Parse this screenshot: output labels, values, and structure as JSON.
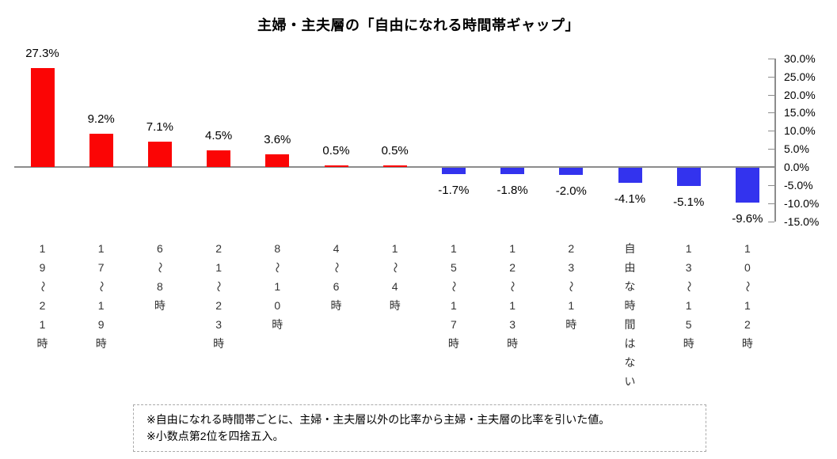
{
  "title": "主婦・主夫層の「自由になれる時間帯ギャップ」",
  "chart_data": {
    "type": "bar",
    "title": "主婦・主夫層の「自由になれる時間帯ギャップ」",
    "categories": [
      "19〜21時",
      "17〜19時",
      "6〜8時",
      "21〜23時",
      "8〜10時",
      "4〜6時",
      "1〜4時",
      "15〜17時",
      "12〜13時",
      "23〜1時",
      "自由な時間はない",
      "13〜15時",
      "10〜12時"
    ],
    "values": [
      27.3,
      9.2,
      7.1,
      4.5,
      3.6,
      0.5,
      0.5,
      -1.7,
      -1.8,
      -2.0,
      -4.1,
      -5.1,
      -9.6
    ],
    "value_labels": [
      "27.3%",
      "9.2%",
      "7.1%",
      "4.5%",
      "3.6%",
      "0.5%",
      "0.5%",
      "-1.7%",
      "-1.8%",
      "-2.0%",
      "-4.1%",
      "-5.1%",
      "-9.6%"
    ],
    "xlabel": "",
    "ylabel": "",
    "ylim": [
      -15,
      30
    ],
    "y_ticks": [
      30,
      25,
      20,
      15,
      10,
      5,
      0,
      -5,
      -10,
      -15
    ],
    "y_tick_labels": [
      "30.0%",
      "25.0%",
      "20.0%",
      "15.0%",
      "10.0%",
      "5.0%",
      "0.0%",
      "-5.0%",
      "-10.0%",
      "-15.0%"
    ],
    "value_axis_side": "right",
    "grid": false,
    "legend_position": "none",
    "positive_color": "#fb0505",
    "negative_color": "#3333ee",
    "axis_color": "#8c8c8c"
  },
  "footnote": {
    "line1": "※自由になれる時間帯ごとに、主婦・主夫層以外の比率から主婦・主夫層の比率を引いた値。",
    "line2": "※小数点第2位を四捨五入。"
  }
}
